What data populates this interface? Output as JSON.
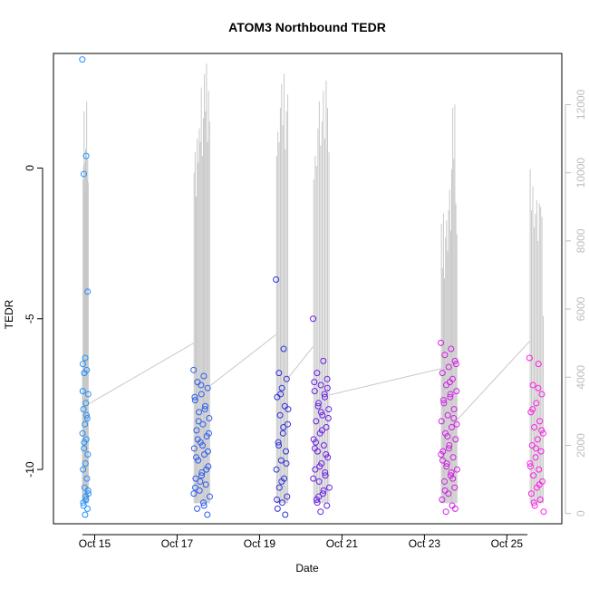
{
  "chart_data": {
    "type": "scatter",
    "title": "ATOM3 Northbound TEDR",
    "xlabel": "Date",
    "ylabel": "TEDR",
    "x_ticks": [
      "Oct 15",
      "Oct 17",
      "Oct 19",
      "Oct 21",
      "Oct 23",
      "Oct 25"
    ],
    "xlim": [
      "2023-10-14T00:00",
      "2023-10-26T08:00"
    ],
    "ylim": [
      -11.8,
      3.8
    ],
    "y_ticks": [
      -10,
      -5,
      0
    ],
    "y2lim": [
      -300,
      13500
    ],
    "y2_ticks": [
      0,
      2000,
      4000,
      6000,
      8000,
      10000,
      12000
    ],
    "secondary_axis_color": "#bdbdbd",
    "line_color": "#c8c8c8",
    "point_colors": [
      "#1e90ff",
      "#2b5cf0",
      "#2f2fdc",
      "#6a1ee6",
      "#a020f0",
      "#d21ee6",
      "#ff1ee6"
    ],
    "clusters": [
      {
        "date": "2023-10-14",
        "start": 0.7,
        "end": 0.85,
        "color": "#1e90ff",
        "points": [
          3.6,
          0.4,
          -0.2,
          -4.1,
          -6.3,
          -6.5,
          -6.7,
          -6.8,
          -7.5,
          -7.8,
          -8.0,
          -8.3,
          -8.5,
          -8.8,
          -9.0,
          -9.3,
          -9.5,
          -9.8,
          -10.0,
          -10.3,
          -10.6,
          -10.8,
          -11.0,
          -11.2,
          -11.3,
          -11.5,
          -7.4,
          -8.2,
          -9.1,
          -10.7,
          -10.9,
          -11.1
        ],
        "line": [
          4200,
          9800,
          10200,
          11800,
          9500,
          10300,
          10700,
          10100,
          12100,
          9800,
          10400,
          9700
        ]
      },
      {
        "date": "2023-10-17",
        "start": 0.4,
        "end": 0.8,
        "color": "#2b5cf0",
        "points": [
          -6.7,
          -6.9,
          -7.1,
          -7.3,
          -7.5,
          -7.7,
          -7.9,
          -8.1,
          -8.3,
          -8.5,
          -8.7,
          -8.9,
          -9.1,
          -9.3,
          -9.5,
          -9.7,
          -9.9,
          -10.1,
          -10.3,
          -10.5,
          -10.7,
          -10.9,
          -11.1,
          -11.3,
          -11.5,
          -7.2,
          -7.6,
          -8.0,
          -8.4,
          -8.8,
          -9.2,
          -9.6,
          -10.0,
          -10.4,
          -10.8,
          -11.2,
          -9.0,
          -9.4,
          -10.2,
          -10.6
        ],
        "line": [
          10000,
          10600,
          9300,
          11000,
          10300,
          11300,
          10900,
          12500,
          10500,
          11600,
          12900,
          11800,
          13200,
          10900,
          12400,
          11500
        ]
      },
      {
        "date": "2023-10-19",
        "start": 0.4,
        "end": 0.7,
        "color": "#2f2fdc",
        "points": [
          -3.7,
          -6.0,
          -6.8,
          -7.0,
          -7.3,
          -7.6,
          -7.9,
          -8.2,
          -8.5,
          -8.8,
          -9.1,
          -9.4,
          -9.7,
          -10.0,
          -10.3,
          -10.6,
          -10.9,
          -11.1,
          -11.3,
          -11.5,
          -7.5,
          -8.0,
          -8.6,
          -9.2,
          -9.8,
          -10.4,
          -11.0
        ],
        "line": [
          10500,
          11200,
          10900,
          11900,
          12600,
          11400,
          12900,
          10700,
          11800,
          12300
        ]
      },
      {
        "date": "2023-10-20",
        "start": 0.3,
        "end": 0.7,
        "color": "#6a1ee6",
        "points": [
          -5.0,
          -6.4,
          -6.8,
          -7.0,
          -7.2,
          -7.4,
          -7.6,
          -7.8,
          -8.0,
          -8.2,
          -8.4,
          -8.6,
          -8.8,
          -9.0,
          -9.2,
          -9.4,
          -9.6,
          -9.8,
          -10.0,
          -10.2,
          -10.4,
          -10.6,
          -10.8,
          -11.0,
          -11.2,
          -11.4,
          -7.1,
          -7.5,
          -7.9,
          -8.3,
          -8.7,
          -9.1,
          -9.5,
          -9.9,
          -10.3,
          -10.7,
          -11.1,
          -7.3,
          -8.1,
          -9.3,
          -10.1,
          -10.9
        ],
        "line": [
          9800,
          10500,
          10200,
          11300,
          12100,
          10800,
          11500,
          12400,
          11000,
          12700,
          11900,
          10600
        ]
      },
      {
        "date": "2023-10-23",
        "start": 0.4,
        "end": 0.8,
        "color": "#d21ee6",
        "points": [
          -5.8,
          -6.0,
          -6.2,
          -6.4,
          -6.6,
          -6.8,
          -7.0,
          -7.2,
          -7.4,
          -7.6,
          -7.8,
          -8.0,
          -8.2,
          -8.4,
          -8.6,
          -8.8,
          -9.0,
          -9.2,
          -9.4,
          -9.6,
          -9.8,
          -10.0,
          -10.2,
          -10.4,
          -10.6,
          -10.8,
          -11.0,
          -11.2,
          -11.4,
          -6.5,
          -7.1,
          -7.7,
          -8.3,
          -8.9,
          -9.5,
          -10.1,
          -10.7,
          -11.3,
          -9.3,
          -9.7,
          -10.3,
          -9.9,
          -8.5,
          -7.5
        ],
        "line": [
          8500,
          7200,
          8800,
          6900,
          8100,
          8600,
          7700,
          8900,
          9500,
          8300,
          10100,
          11900,
          10400,
          12000,
          9100,
          8200
        ]
      },
      {
        "date": "2023-10-25",
        "start": 0.55,
        "end": 0.9,
        "color": "#ff1ee6",
        "points": [
          -6.3,
          -6.5,
          -7.2,
          -7.5,
          -7.8,
          -8.1,
          -8.4,
          -8.6,
          -8.8,
          -9.0,
          -9.2,
          -9.4,
          -9.6,
          -9.8,
          -10.0,
          -10.2,
          -10.4,
          -10.6,
          -10.8,
          -11.0,
          -11.2,
          -11.4,
          -7.3,
          -8.0,
          -8.7,
          -9.3,
          -9.9,
          -10.5,
          -11.1
        ],
        "line": [
          10100,
          8900,
          9600,
          8400,
          8800,
          9200,
          8000,
          9100,
          9000,
          8700,
          5800
        ]
      }
    ]
  }
}
